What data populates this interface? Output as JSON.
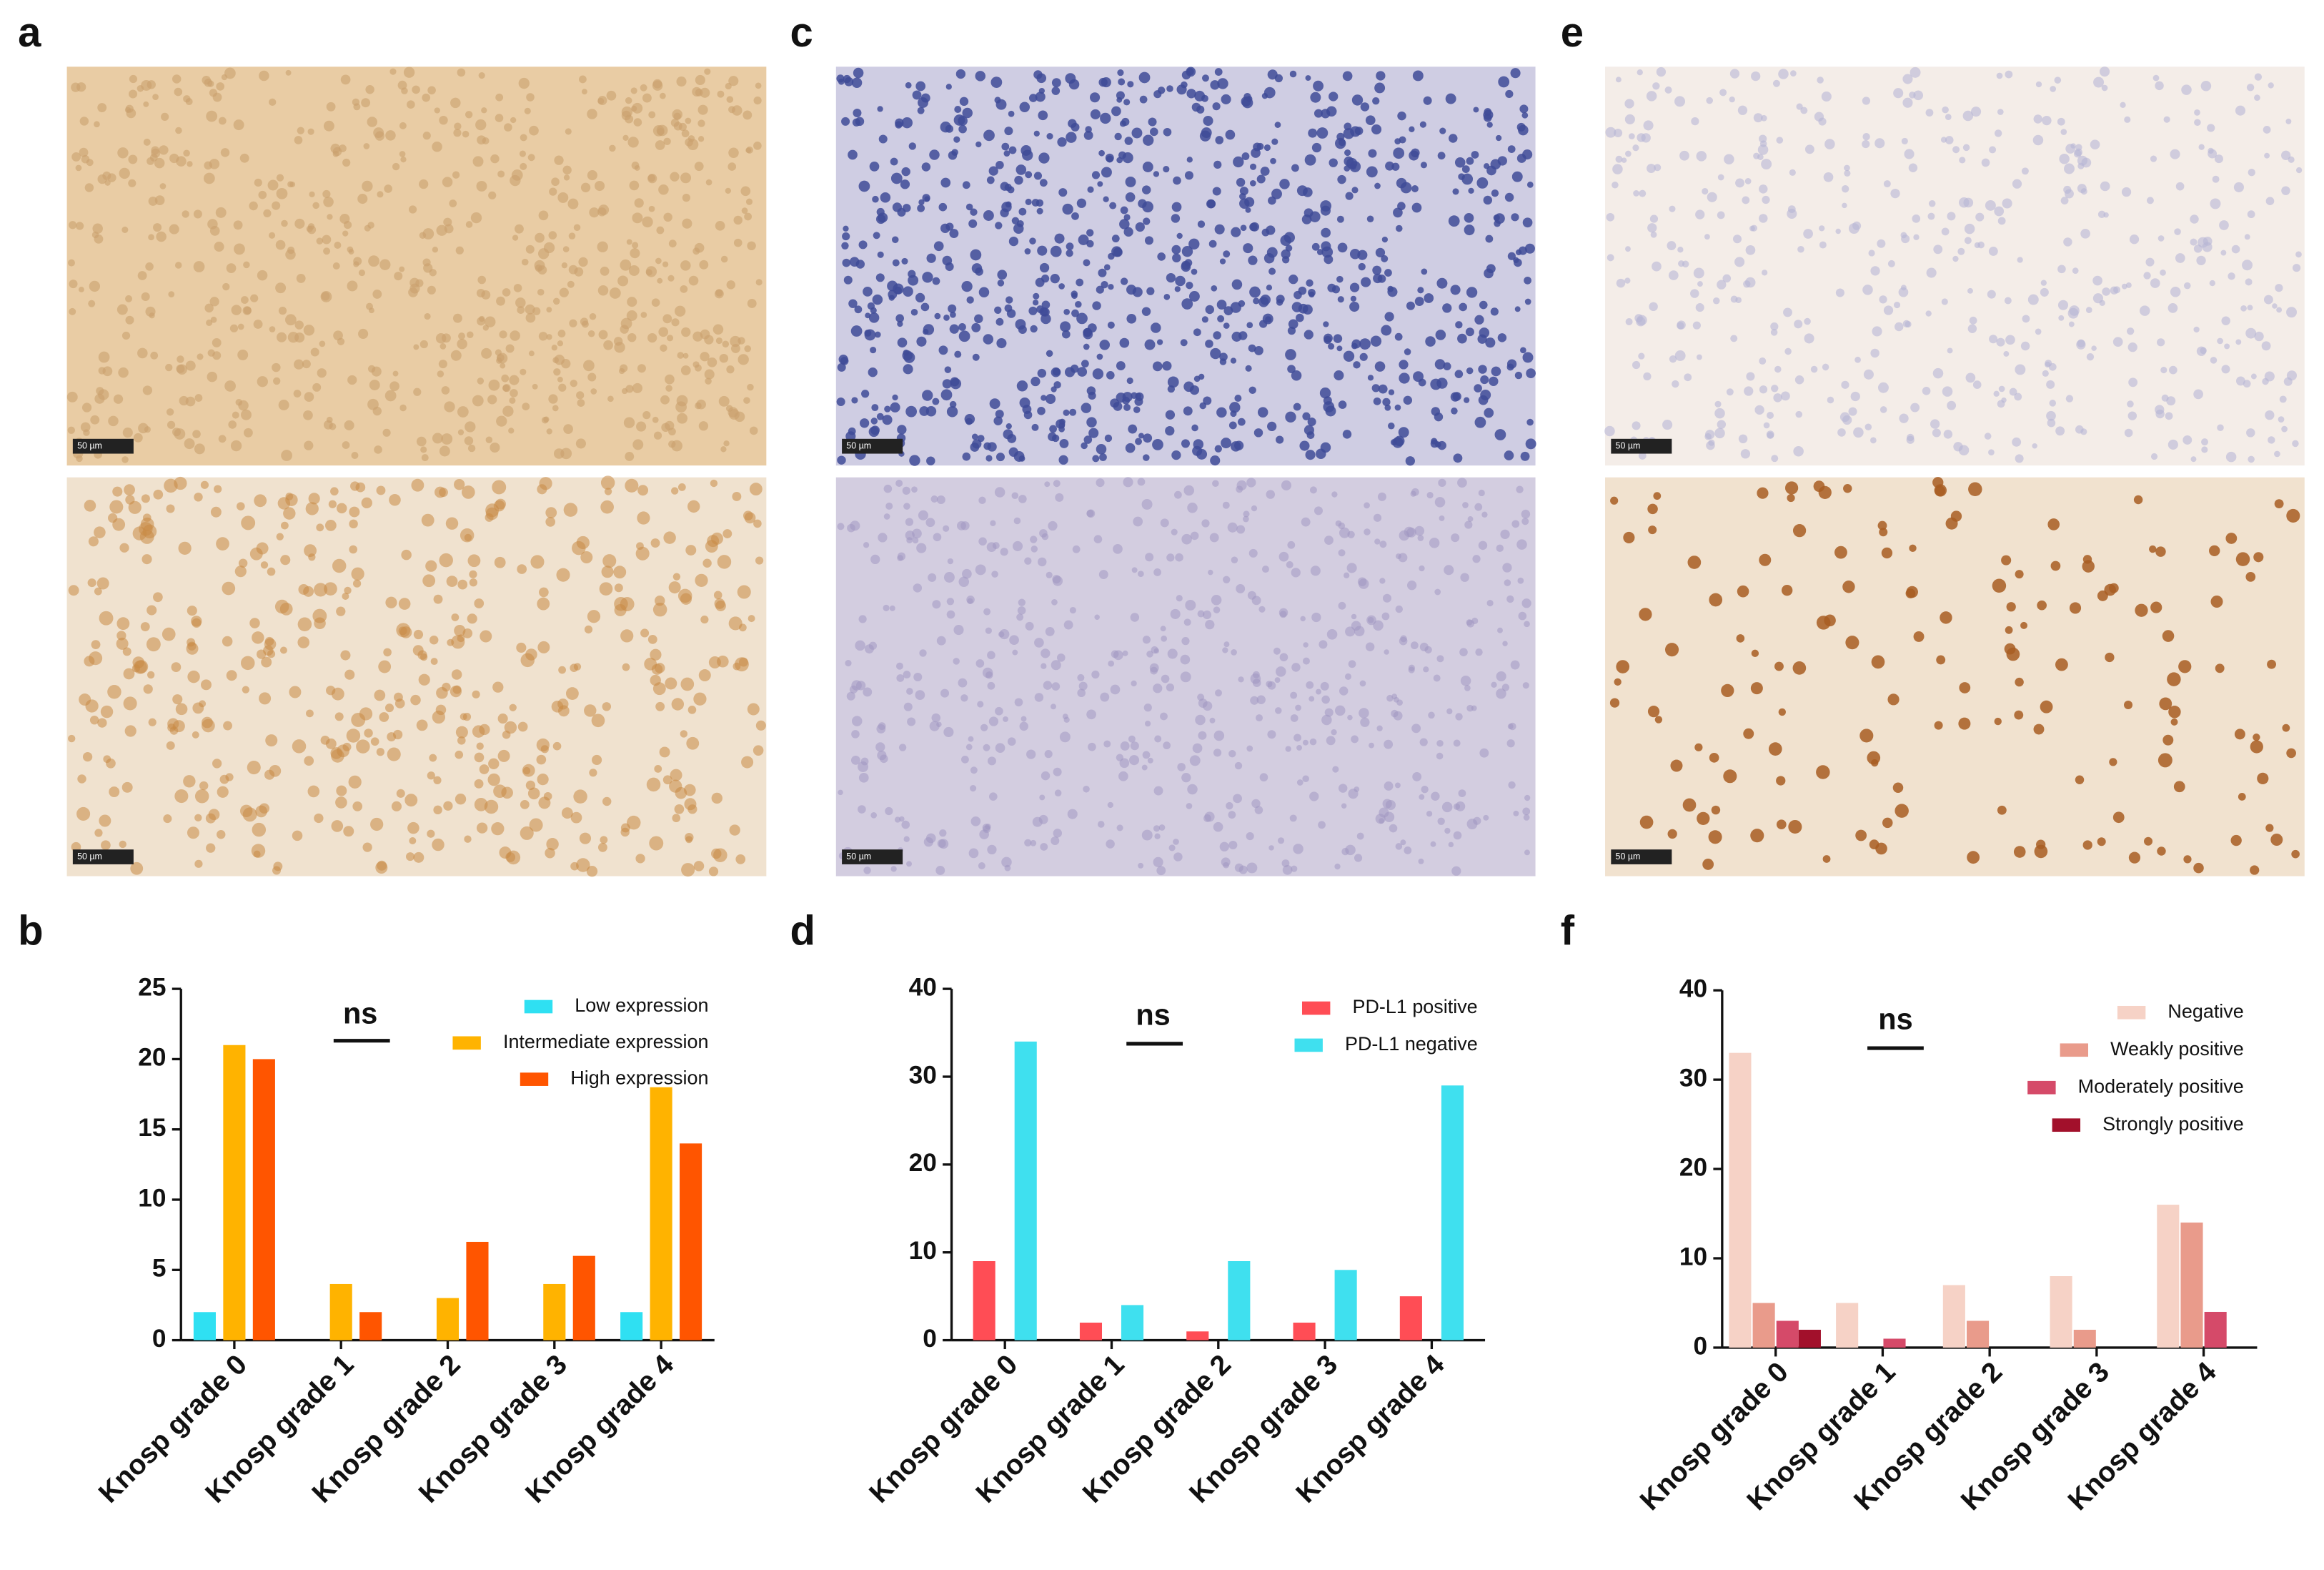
{
  "panel_labels": [
    "a",
    "b",
    "c",
    "d",
    "e",
    "f"
  ],
  "scale_bar": "50 µm",
  "chart_data": [
    {
      "type": "bar",
      "annotation": "ns",
      "categories": [
        "Knosp grade 0",
        "Knosp grade 1",
        "Knosp grade 2",
        "Knosp grade 3",
        "Knosp grade 4"
      ],
      "series": [
        {
          "name": "Low expression",
          "color": "#2fe0f2",
          "values": [
            2,
            0,
            0,
            0,
            2
          ]
        },
        {
          "name": "Intermediate expression",
          "color": "#ffb300",
          "values": [
            21,
            4,
            3,
            4,
            18
          ]
        },
        {
          "name": "High expression",
          "color": "#ff5500",
          "values": [
            20,
            2,
            7,
            6,
            14
          ]
        }
      ],
      "ylim": [
        0,
        25
      ],
      "yticks": [
        0,
        5,
        10,
        15,
        20,
        25
      ],
      "legend": "upper right"
    },
    {
      "type": "bar",
      "annotation": "ns",
      "categories": [
        "Knosp grade 0",
        "Knosp grade 1",
        "Knosp grade 2",
        "Knosp grade 3",
        "Knosp grade 4"
      ],
      "series": [
        {
          "name": "PD-L1 positive",
          "color": "#ff4d55",
          "values": [
            9,
            2,
            1,
            2,
            5
          ]
        },
        {
          "name": "PD-L1 negative",
          "color": "#3fe0ef",
          "values": [
            34,
            4,
            9,
            8,
            29
          ]
        }
      ],
      "ylim": [
        0,
        40
      ],
      "yticks": [
        0,
        10,
        20,
        30,
        40
      ],
      "legend": "upper right"
    },
    {
      "type": "bar",
      "annotation": "ns",
      "categories": [
        "Knosp grade 0",
        "Knosp grade 1",
        "Knosp grade 2",
        "Knosp grade 3",
        "Knosp grade 4"
      ],
      "series": [
        {
          "name": "Negative",
          "color": "#f6d2c6",
          "values": [
            33,
            5,
            7,
            8,
            16
          ]
        },
        {
          "name": "Weakly positive",
          "color": "#e99b8b",
          "values": [
            5,
            0,
            3,
            2,
            14
          ]
        },
        {
          "name": "Moderately positive",
          "color": "#d54a69",
          "values": [
            3,
            1,
            0,
            0,
            4
          ]
        },
        {
          "name": "Strongly positive",
          "color": "#a2102b",
          "values": [
            2,
            0,
            0,
            0,
            0
          ]
        }
      ],
      "ylim": [
        0,
        40
      ],
      "yticks": [
        0,
        10,
        20,
        30,
        40
      ],
      "legend": "upper right"
    }
  ]
}
